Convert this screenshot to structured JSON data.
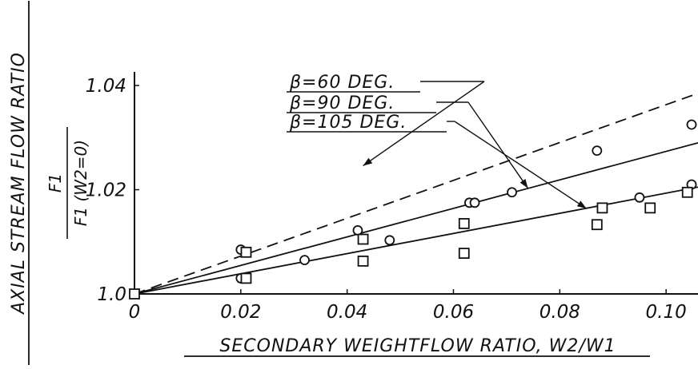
{
  "chart_data": {
    "type": "scatter",
    "xlabel": "SECONDARY WEIGHTFLOW RATIO, W2/W1",
    "ylabel": "AXIAL STREAM FLOW RATIO",
    "ylabel_fraction": {
      "numerator": "F1",
      "denominator": "F1 (W2=0)"
    },
    "xlim": [
      0,
      0.106
    ],
    "ylim": [
      1.0,
      1.042
    ],
    "x_ticks": [
      {
        "value": 0,
        "label": "0"
      },
      {
        "value": 0.02,
        "label": "0.02"
      },
      {
        "value": 0.04,
        "label": "0.04"
      },
      {
        "value": 0.06,
        "label": "0.06"
      },
      {
        "value": 0.08,
        "label": "0.08"
      },
      {
        "value": 0.1,
        "label": "0.10"
      }
    ],
    "y_ticks": [
      {
        "value": 1.0,
        "label": "1.0"
      },
      {
        "value": 1.02,
        "label": "1.02"
      },
      {
        "value": 1.04,
        "label": "1.04"
      }
    ],
    "grid": false,
    "series": [
      {
        "name": "β=60 DEG.",
        "style": "dashed",
        "line": {
          "x": [
            0,
            0.106
          ],
          "y": [
            1.0,
            1.0385
          ]
        }
      },
      {
        "name": "β=90 DEG.",
        "style": "solid",
        "marker": "circle",
        "line": {
          "x": [
            0,
            0.106
          ],
          "y": [
            1.0,
            1.029
          ]
        },
        "points": {
          "x": [
            0,
            0.02,
            0.02,
            0.032,
            0.042,
            0.048,
            0.063,
            0.064,
            0.071,
            0.087,
            0.095,
            0.105,
            0.107
          ],
          "y": [
            1.0,
            1.0085,
            1.003,
            1.0065,
            1.0122,
            1.0103,
            1.0175,
            1.0175,
            1.0195,
            1.0275,
            1.0185,
            1.0325,
            1.021
          ]
        }
      },
      {
        "name": "β=105 DEG.",
        "style": "solid",
        "marker": "square",
        "line": {
          "x": [
            0,
            0.106
          ],
          "y": [
            1.0,
            1.0205
          ]
        },
        "points": {
          "x": [
            0,
            0.021,
            0.021,
            0.043,
            0.043,
            0.062,
            0.062,
            0.087,
            0.088,
            0.097,
            0.104
          ],
          "y": [
            1.0,
            1.008,
            1.003,
            1.0105,
            1.0063,
            1.0135,
            1.0078,
            1.0133,
            1.0165,
            1.0165,
            1.0195
          ]
        }
      }
    ],
    "annotations": [
      {
        "text": "β=60 DEG.",
        "series": "β=60 DEG.",
        "arrow_to": {
          "x": 0.043,
          "y": 1.0246
        }
      },
      {
        "text": "β=90 DEG.",
        "series": "β=90 DEG.",
        "arrow_to": {
          "x": 0.074,
          "y": 1.0203
        }
      },
      {
        "text": "β=105 DEG.",
        "series": "β=105 DEG.",
        "arrow_to": {
          "x": 0.085,
          "y": 1.0164
        }
      }
    ]
  }
}
